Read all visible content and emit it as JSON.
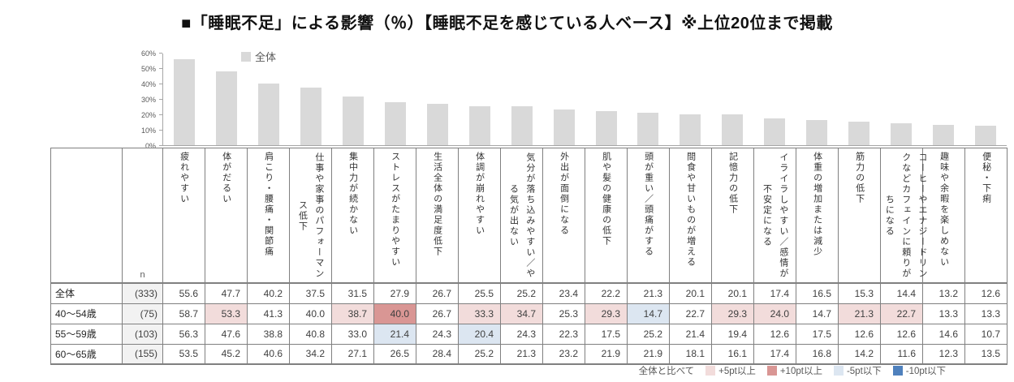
{
  "title": "■「睡眠不足」による影響（％）【睡眠不足を感じている人ベース】※上位20位まで掲載",
  "chart_data": {
    "type": "bar",
    "title": "「睡眠不足」による影響（％）",
    "legend": "全体",
    "legend_position": "top",
    "bar_color": "#d9d9d9",
    "grid": false,
    "ylim": [
      0,
      60
    ],
    "yticks": [
      "0%",
      "10%",
      "20%",
      "30%",
      "40%",
      "50%",
      "60%"
    ],
    "categories": [
      "疲れやすい",
      "体がだるい",
      "肩こり・腰痛・関節痛",
      "仕事や家事のパフォーマンス低下",
      "集中力が続かない",
      "ストレスがたまりやすい",
      "生活全体の満足度低下",
      "体調が崩れやすい",
      "気分が落ち込みやすい／やる気が出ない",
      "外出が面倒になる",
      "肌や髪の健康の低下",
      "頭が重い／頭痛がする",
      "間食や甘いものが増える",
      "記憶力の低下",
      "イライラしやすい／感情が不安定になる",
      "体重の増加または減少",
      "筋力の低下",
      "コーヒーやエナジードリンクなどカフェインに頼りがちになる",
      "趣味や余暇を楽しめない",
      "便秘・下痢"
    ],
    "values": [
      55.6,
      47.7,
      40.2,
      37.5,
      31.5,
      27.9,
      26.7,
      25.5,
      25.2,
      23.4,
      22.2,
      21.3,
      20.1,
      20.1,
      17.4,
      16.5,
      15.3,
      14.4,
      13.2,
      12.6
    ]
  },
  "table": {
    "n_header": "n",
    "rows": [
      {
        "label": "全体",
        "n": "(333)",
        "values": [
          "55.6",
          "47.7",
          "40.2",
          "37.5",
          "31.5",
          "27.9",
          "26.7",
          "25.5",
          "25.2",
          "23.4",
          "22.2",
          "21.3",
          "20.1",
          "20.1",
          "17.4",
          "16.5",
          "15.3",
          "14.4",
          "13.2",
          "12.6"
        ],
        "flags": [
          "",
          "",
          "",
          "",
          "",
          "",
          "",
          "",
          "",
          "",
          "",
          "",
          "",
          "",
          "",
          "",
          "",
          "",
          "",
          ""
        ]
      },
      {
        "label": "40～54歳",
        "n": "(75)",
        "values": [
          "58.7",
          "53.3",
          "41.3",
          "40.0",
          "38.7",
          "40.0",
          "26.7",
          "33.3",
          "34.7",
          "25.3",
          "29.3",
          "14.7",
          "22.7",
          "29.3",
          "24.0",
          "14.7",
          "21.3",
          "22.7",
          "13.3",
          "13.3"
        ],
        "flags": [
          "",
          "p5",
          "",
          "",
          "p5",
          "p10",
          "",
          "p5",
          "p5",
          "",
          "p5",
          "m5",
          "",
          "p5",
          "p5",
          "",
          "p5",
          "p5",
          "",
          ""
        ]
      },
      {
        "label": "55～59歳",
        "n": "(103)",
        "values": [
          "56.3",
          "47.6",
          "38.8",
          "40.8",
          "33.0",
          "21.4",
          "24.3",
          "20.4",
          "24.3",
          "22.3",
          "17.5",
          "25.2",
          "21.4",
          "19.4",
          "12.6",
          "17.5",
          "12.6",
          "12.6",
          "14.6",
          "10.7"
        ],
        "flags": [
          "",
          "",
          "",
          "",
          "",
          "m5",
          "",
          "m5",
          "",
          "",
          "",
          "",
          "",
          "",
          "",
          "",
          "",
          "",
          "",
          ""
        ]
      },
      {
        "label": "60～65歳",
        "n": "(155)",
        "values": [
          "53.5",
          "45.2",
          "40.6",
          "34.2",
          "27.1",
          "26.5",
          "28.4",
          "25.2",
          "21.3",
          "23.2",
          "21.9",
          "21.9",
          "18.1",
          "16.1",
          "17.4",
          "16.8",
          "14.2",
          "11.6",
          "12.3",
          "13.5"
        ],
        "flags": [
          "",
          "",
          "",
          "",
          "",
          "",
          "",
          "",
          "",
          "",
          "",
          "",
          "",
          "",
          "",
          "",
          "",
          "",
          "",
          ""
        ]
      }
    ]
  },
  "footer_legend": {
    "prefix": "全体と比べて",
    "items": [
      {
        "label": "+5pt以上",
        "color": "#f2dcdb"
      },
      {
        "label": "+10pt以上",
        "color": "#d99694"
      },
      {
        "label": "-5pt以下",
        "color": "#dce6f1"
      },
      {
        "label": "-10pt以下",
        "color": "#4f81bd"
      }
    ]
  },
  "colors": {
    "bar": "#d9d9d9",
    "plus5": "#f2dcdb",
    "plus10": "#d99694",
    "minus5": "#dce6f1",
    "minus10": "#4f81bd",
    "table_border": "#808080"
  }
}
